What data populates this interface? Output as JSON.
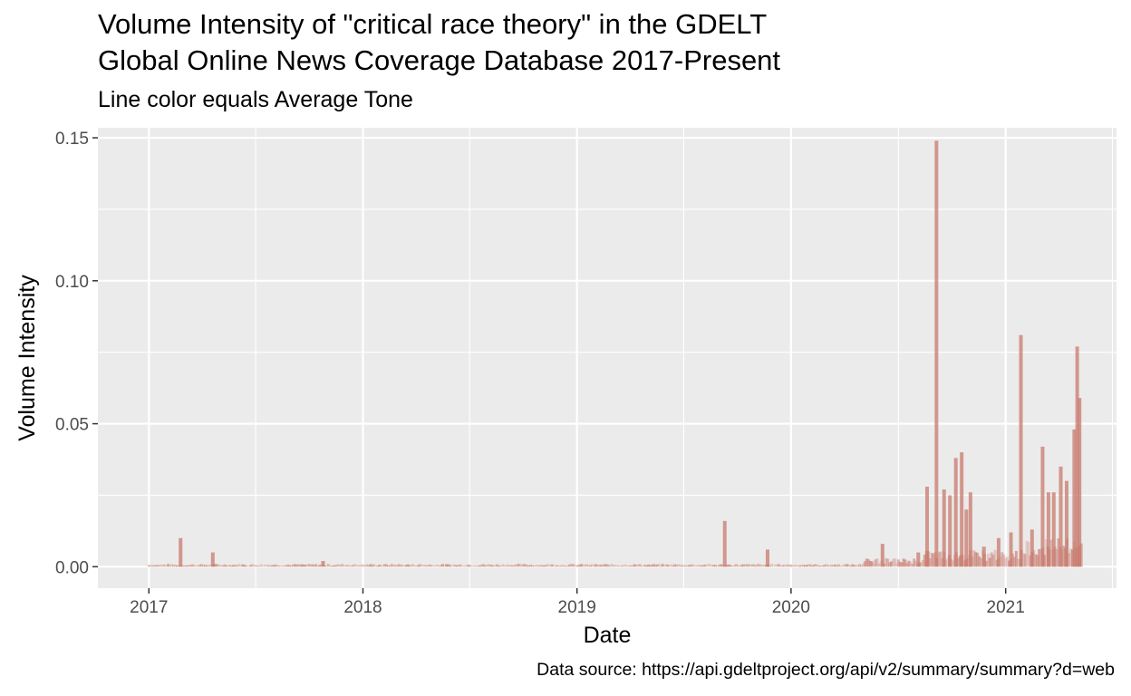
{
  "chart_data": {
    "type": "line",
    "title_line1": "Volume Intensity of \"critical race theory\" in the GDELT",
    "title_line2": "Global Online News Coverage Database 2017-Present",
    "subtitle": "Line color equals Average Tone",
    "xlabel": "Date",
    "ylabel": "Volume Intensity",
    "caption": "Data source: https://api.gdeltproject.org/api/v2/summary/summary?d=web",
    "x_tick_labels": [
      "2017",
      "2018",
      "2019",
      "2020",
      "2021"
    ],
    "y_tick_labels": [
      "0.00",
      "0.05",
      "0.10",
      "0.15"
    ],
    "xlim": [
      "2016-10-06",
      "2021-07-09"
    ],
    "ylim": [
      -0.0075,
      0.1535
    ],
    "grid": true,
    "panel_background": "#ebebeb",
    "grid_color": "#ffffff",
    "line_color_low_tone": "#c8796c",
    "line_color_high_tone": "#ffffff",
    "spikes": [
      {
        "date": "2017-02-24",
        "value": 0.01
      },
      {
        "date": "2017-04-20",
        "value": 0.005
      },
      {
        "date": "2017-10-25",
        "value": 0.002
      },
      {
        "date": "2019-09-10",
        "value": 0.016
      },
      {
        "date": "2019-11-22",
        "value": 0.006
      },
      {
        "date": "2020-06-05",
        "value": 0.008
      },
      {
        "date": "2020-08-05",
        "value": 0.005
      },
      {
        "date": "2020-08-20",
        "value": 0.028
      },
      {
        "date": "2020-09-05",
        "value": 0.149
      },
      {
        "date": "2020-09-18",
        "value": 0.027
      },
      {
        "date": "2020-09-28",
        "value": 0.025
      },
      {
        "date": "2020-10-08",
        "value": 0.038
      },
      {
        "date": "2020-10-18",
        "value": 0.04
      },
      {
        "date": "2020-10-26",
        "value": 0.02
      },
      {
        "date": "2020-11-02",
        "value": 0.026
      },
      {
        "date": "2020-11-25",
        "value": 0.007
      },
      {
        "date": "2020-12-20",
        "value": 0.01
      },
      {
        "date": "2021-01-10",
        "value": 0.012
      },
      {
        "date": "2021-01-27",
        "value": 0.081
      },
      {
        "date": "2021-02-15",
        "value": 0.013
      },
      {
        "date": "2021-03-05",
        "value": 0.042
      },
      {
        "date": "2021-03-15",
        "value": 0.026
      },
      {
        "date": "2021-03-24",
        "value": 0.026
      },
      {
        "date": "2021-04-05",
        "value": 0.035
      },
      {
        "date": "2021-04-15",
        "value": 0.03
      },
      {
        "date": "2021-04-28",
        "value": 0.048
      },
      {
        "date": "2021-05-03",
        "value": 0.077
      },
      {
        "date": "2021-05-07",
        "value": 0.059
      }
    ]
  }
}
